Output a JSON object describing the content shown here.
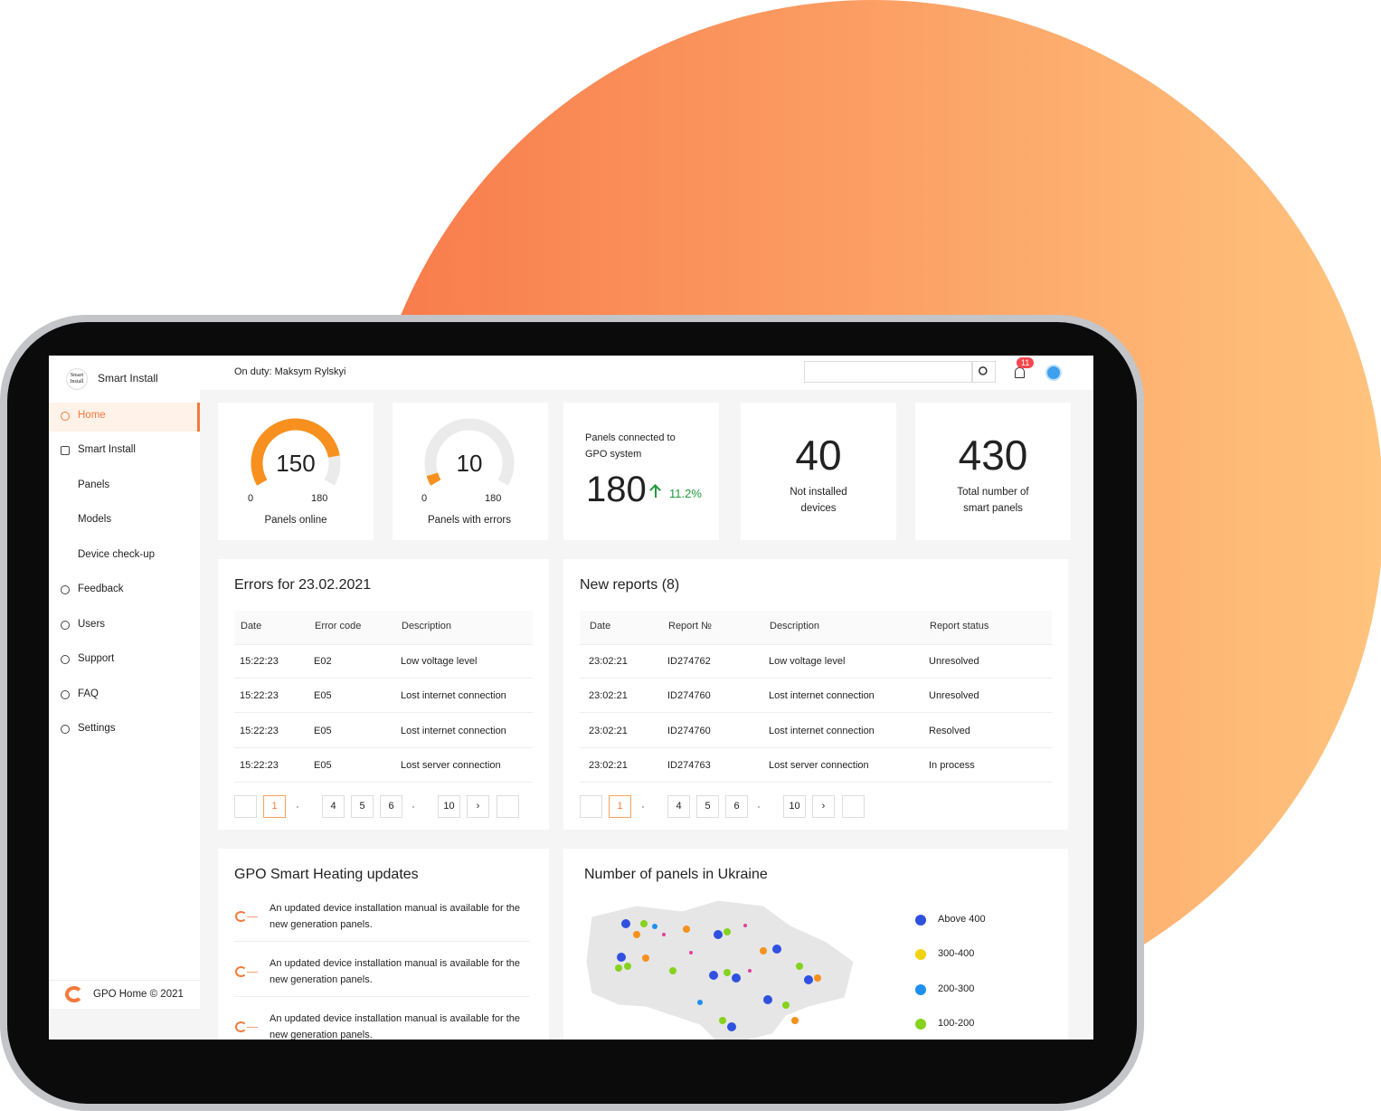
{
  "header": {
    "logo": "Smart Install",
    "brand": "Smart Install",
    "on_duty": "On duty: Maksym Rylskyi",
    "notifications": 11
  },
  "sidebar": {
    "items": [
      "Home",
      "Smart Install",
      "Panels",
      "Models",
      "Device check-up",
      "Feedback",
      "Users",
      "Support",
      "FAQ",
      "Settings"
    ],
    "active": 0,
    "footer": "GPO Home © 2021"
  },
  "stats": {
    "gauges": [
      {
        "value": 150,
        "min": 0,
        "max": 180,
        "label": "Panels online"
      },
      {
        "value": 10,
        "min": 0,
        "max": 180,
        "label": "Panels with errors"
      }
    ],
    "connected": {
      "label": "Panels connected to GPO system",
      "value": 180,
      "change": "11.2%"
    },
    "kpis": [
      {
        "value": 40,
        "label": "Not installed devices"
      },
      {
        "value": 430,
        "label": "Total number of smart panels"
      }
    ]
  },
  "errors": {
    "title": "Errors for 23.02.2021",
    "columns": [
      "Date",
      "Error code",
      "Description"
    ],
    "rows": [
      [
        "15:22:23",
        "E02",
        "Low voltage level"
      ],
      [
        "15:22:23",
        "E05",
        "Lost internet connection"
      ],
      [
        "15:22:23",
        "E05",
        "Lost internet connection"
      ],
      [
        "15:22:23",
        "E05",
        "Lost server connection"
      ]
    ],
    "pages": [
      "1",
      "4",
      "5",
      "6",
      "10"
    ]
  },
  "reports": {
    "title": "New reports (8)",
    "columns": [
      "Date",
      "Report №",
      "Description",
      "Report status"
    ],
    "rows": [
      [
        "23:02:21",
        "ID274762",
        "Low voltage level",
        "Unresolved"
      ],
      [
        "23:02:21",
        "ID274760",
        "Lost internet connection",
        "Unresolved"
      ],
      [
        "23:02:21",
        "ID274760",
        "Lost internet connection",
        "Resolved"
      ],
      [
        "23:02:21",
        "ID274763",
        "Lost server connection",
        "In process"
      ]
    ],
    "pages": [
      "1",
      "4",
      "5",
      "6",
      "10"
    ]
  },
  "updates": {
    "title": "GPO Smart Heating updates",
    "items": [
      "An updated device installation manual is available for the new generation panels.",
      "An updated device installation manual is available for the new generation panels.",
      "An updated device installation manual is available for the new generation panels."
    ]
  },
  "map": {
    "title": "Number of panels in Ukraine",
    "legend": [
      {
        "label": "Above 400",
        "color": "#3050e0"
      },
      {
        "label": "300-400",
        "color": "#f2d20c"
      },
      {
        "label": "200-300",
        "color": "#1e90f0"
      },
      {
        "label": "100-200",
        "color": "#86d21e"
      }
    ]
  }
}
